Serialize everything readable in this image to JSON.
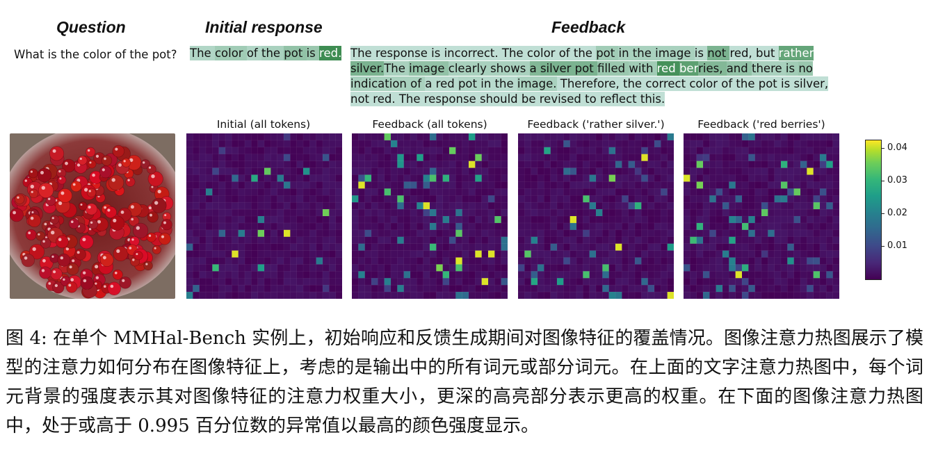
{
  "headers": {
    "question": "Question",
    "initial": "Initial response",
    "feedback": "Feedback"
  },
  "question_text": "What is the color of the pot?",
  "initial_tokens": [
    [
      "The ",
      0.25
    ],
    [
      "color ",
      0.35
    ],
    [
      "of ",
      0.25
    ],
    [
      "the ",
      0.3
    ],
    [
      "pot ",
      0.45
    ],
    [
      "is ",
      0.4
    ],
    [
      "red.",
      1.0
    ]
  ],
  "feedback_tokens": [
    [
      "The ",
      0.15
    ],
    [
      "response ",
      0.15
    ],
    [
      "is ",
      0.15
    ],
    [
      "incorrect. ",
      0.15
    ],
    [
      "The ",
      0.15
    ],
    [
      "color ",
      0.15
    ],
    [
      "of ",
      0.15
    ],
    [
      "the ",
      0.15
    ],
    [
      "pot ",
      0.35
    ],
    [
      "in ",
      0.3
    ],
    [
      "the ",
      0.3
    ],
    [
      "image ",
      0.3
    ],
    [
      "is ",
      0.2
    ],
    [
      "not ",
      0.6
    ],
    [
      "red, ",
      0.15
    ],
    [
      "but ",
      0.15
    ],
    [
      "rather ",
      0.75
    ],
    [
      "silver.",
      0.6
    ],
    [
      "The ",
      0.3
    ],
    [
      "image ",
      0.45
    ],
    [
      "clearly ",
      0.3
    ],
    [
      "shows ",
      0.3
    ],
    [
      "a ",
      0.55
    ],
    [
      "silver ",
      0.6
    ],
    [
      "pot ",
      0.6
    ],
    [
      "filled ",
      0.4
    ],
    [
      "with ",
      0.35
    ],
    [
      "red ",
      0.95
    ],
    [
      "ber",
      0.8
    ],
    [
      "ries, ",
      0.55
    ],
    [
      "and ",
      0.45
    ],
    [
      "there ",
      0.3
    ],
    [
      "is ",
      0.35
    ],
    [
      "no ",
      0.4
    ],
    [
      "indication ",
      0.3
    ],
    [
      "of ",
      0.3
    ],
    [
      "a ",
      0.2
    ],
    [
      "red ",
      0.2
    ],
    [
      "pot ",
      0.25
    ],
    [
      "in ",
      0.2
    ],
    [
      "the ",
      0.2
    ],
    [
      "image.",
      0.3
    ],
    [
      " Therefore, ",
      0.15
    ],
    [
      "the ",
      0.15
    ],
    [
      "correct ",
      0.15
    ],
    [
      "color ",
      0.15
    ],
    [
      "of ",
      0.15
    ],
    [
      "the ",
      0.15
    ],
    [
      "pot ",
      0.15
    ],
    [
      "is ",
      0.15
    ],
    [
      "silver, ",
      0.15
    ],
    [
      "not ",
      0.15
    ],
    [
      "red. ",
      0.15
    ],
    [
      "The ",
      0.15
    ],
    [
      "response ",
      0.15
    ],
    [
      "should ",
      0.15
    ],
    [
      "be ",
      0.15
    ],
    [
      "revised ",
      0.15
    ],
    [
      "to ",
      0.15
    ],
    [
      "reflect ",
      0.15
    ],
    [
      "this.",
      0.15
    ]
  ],
  "heatmap_titles": [
    "Initial (all tokens)",
    "Feedback (all tokens)",
    "Feedback ('rather silver.')",
    "Feedback ('red berries')"
  ],
  "colorbar": {
    "ticks": [
      "0.04",
      "0.03",
      "0.02",
      "0.01"
    ],
    "values": [
      0.04,
      0.03,
      0.02,
      0.01
    ],
    "min": 0.0,
    "max": 0.0425
  },
  "caption": "图 4: 在单个 MMHal-Bench 实例上，初始响应和反馈生成期间对图像特征的覆盖情况。图像注意力热图展示了模型的注意力如何分布在图像特征上，考虑的是输出中的所有词元或部分词元。在上面的文字注意力热图中，每个词元背景的强度表示其对图像特征的注意力权重大小，更深的高亮部分表示更高的权重。在下面的图像注意力热图中，处于或高于 0.995 百分位数的异常值以最高的颜色强度显示。"
}
